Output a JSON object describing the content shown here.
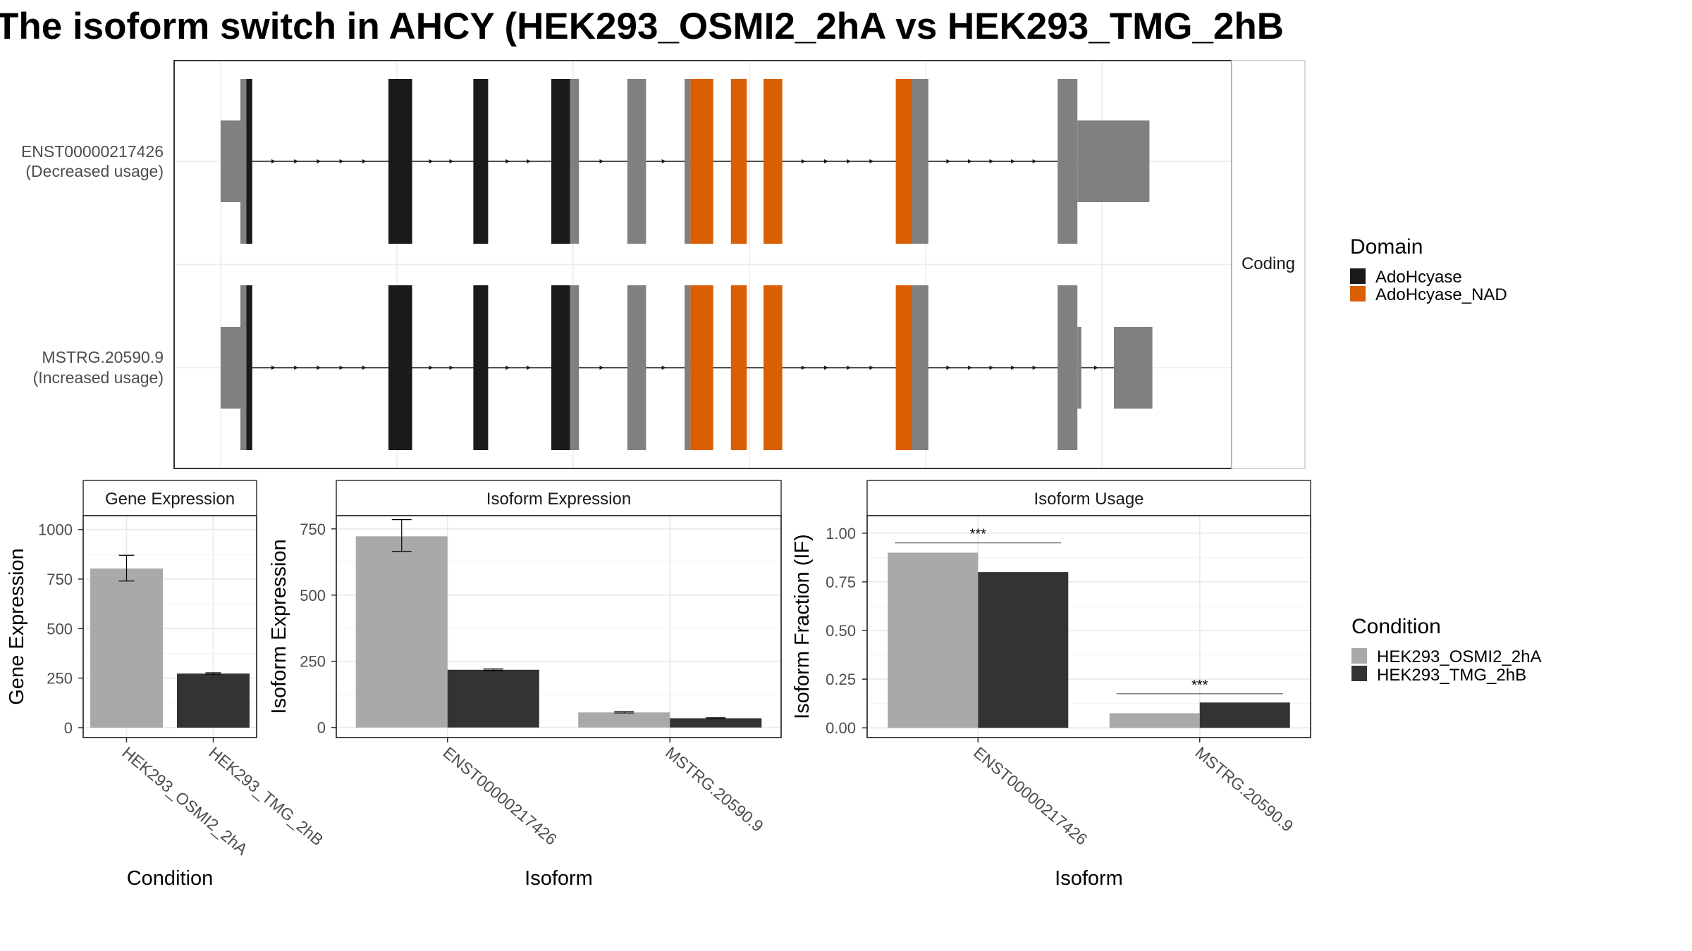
{
  "title": "The isoform switch in AHCY (HEK293_OSMI2_2hA vs HEK293_TMG_2hB",
  "colors": {
    "domain_AdoHcyase": "#1a1a1a",
    "domain_AdoHcyase_NAD": "#d95f02",
    "noncoding_exon": "#808080",
    "cond_A": "#a9a9a9",
    "cond_B": "#333333",
    "grid": "#ebebeb",
    "frame": "#333333"
  },
  "structure_panel": {
    "facet_label": "Coding",
    "isoforms": [
      {
        "id": "ENST00000217426",
        "label_line1": "ENST00000217426",
        "label_line2": "(Decreased usage)",
        "blocks": [
          {
            "start": 0.0,
            "end": 2.0,
            "h": "utr",
            "c": "gray"
          },
          {
            "start": 2.0,
            "end": 2.6,
            "h": "cds",
            "c": "gray"
          },
          {
            "start": 2.6,
            "end": 3.2,
            "h": "cds",
            "c": "black"
          },
          {
            "start": 17.0,
            "end": 19.4,
            "h": "cds",
            "c": "black"
          },
          {
            "start": 25.6,
            "end": 27.1,
            "h": "cds",
            "c": "black"
          },
          {
            "start": 33.5,
            "end": 35.4,
            "h": "cds",
            "c": "black"
          },
          {
            "start": 35.4,
            "end": 36.3,
            "h": "cds",
            "c": "gray"
          },
          {
            "start": 41.2,
            "end": 43.1,
            "h": "cds",
            "c": "gray"
          },
          {
            "start": 47.0,
            "end": 47.6,
            "h": "cds",
            "c": "gray"
          },
          {
            "start": 47.6,
            "end": 49.9,
            "h": "cds",
            "c": "orange"
          },
          {
            "start": 51.7,
            "end": 53.3,
            "h": "cds",
            "c": "orange"
          },
          {
            "start": 55.0,
            "end": 56.9,
            "h": "cds",
            "c": "orange"
          },
          {
            "start": 68.4,
            "end": 70.0,
            "h": "cds",
            "c": "orange"
          },
          {
            "start": 70.0,
            "end": 71.7,
            "h": "cds",
            "c": "gray"
          },
          {
            "start": 84.8,
            "end": 86.8,
            "h": "cds",
            "c": "gray"
          },
          {
            "start": 86.8,
            "end": 94.1,
            "h": "utr",
            "c": "gray"
          }
        ],
        "intron_start": 3.2,
        "intron_end": 84.8
      },
      {
        "id": "MSTRG.20590.9",
        "label_line1": "MSTRG.20590.9",
        "label_line2": "(Increased usage)",
        "blocks": [
          {
            "start": 0.0,
            "end": 2.0,
            "h": "utr",
            "c": "gray"
          },
          {
            "start": 2.0,
            "end": 2.6,
            "h": "cds",
            "c": "gray"
          },
          {
            "start": 2.6,
            "end": 3.2,
            "h": "cds",
            "c": "black"
          },
          {
            "start": 17.0,
            "end": 19.4,
            "h": "cds",
            "c": "black"
          },
          {
            "start": 25.6,
            "end": 27.1,
            "h": "cds",
            "c": "black"
          },
          {
            "start": 33.5,
            "end": 35.4,
            "h": "cds",
            "c": "black"
          },
          {
            "start": 35.4,
            "end": 36.3,
            "h": "cds",
            "c": "gray"
          },
          {
            "start": 41.2,
            "end": 43.1,
            "h": "cds",
            "c": "gray"
          },
          {
            "start": 47.0,
            "end": 47.6,
            "h": "cds",
            "c": "gray"
          },
          {
            "start": 47.6,
            "end": 49.9,
            "h": "cds",
            "c": "orange"
          },
          {
            "start": 51.7,
            "end": 53.3,
            "h": "cds",
            "c": "orange"
          },
          {
            "start": 55.0,
            "end": 56.9,
            "h": "cds",
            "c": "orange"
          },
          {
            "start": 68.4,
            "end": 70.0,
            "h": "cds",
            "c": "orange"
          },
          {
            "start": 70.0,
            "end": 71.7,
            "h": "cds",
            "c": "gray"
          },
          {
            "start": 84.8,
            "end": 86.8,
            "h": "cds",
            "c": "gray"
          },
          {
            "start": 86.8,
            "end": 87.2,
            "h": "utr",
            "c": "gray"
          },
          {
            "start": 90.5,
            "end": 94.4,
            "h": "utr",
            "c": "gray"
          }
        ],
        "intron_start": 3.2,
        "intron_end": 90.5
      }
    ]
  },
  "legend_domain": {
    "title": "Domain",
    "items": [
      {
        "label": "AdoHcyase",
        "color": "#1a1a1a"
      },
      {
        "label": "AdoHcyase_NAD",
        "color": "#d95f02"
      }
    ]
  },
  "legend_condition": {
    "title": "Condition",
    "items": [
      {
        "label": "HEK293_OSMI2_2hA",
        "color": "#a9a9a9"
      },
      {
        "label": "HEK293_TMG_2hB",
        "color": "#333333"
      }
    ]
  },
  "chart_data": [
    {
      "type": "bar",
      "facet": "Gene Expression",
      "xlabel": "Condition",
      "ylabel": "Gene Expression",
      "categories": [
        "HEK293_OSMI2_2hA",
        "HEK293_TMG_2hB"
      ],
      "values": [
        803,
        273
      ],
      "errors": [
        [
          740,
          870
        ],
        [
          270,
          277
        ]
      ],
      "ylim": [
        -50,
        1070
      ],
      "yticks": [
        0,
        250,
        500,
        750,
        1000
      ],
      "ytick_labels": [
        "0",
        "250",
        "500",
        "750",
        "1000"
      ]
    },
    {
      "type": "bar",
      "facet": "Isoform Expression",
      "xlabel": "Isoform",
      "ylabel": "Isoform Expression",
      "categories": [
        "ENST00000217426",
        "MSTRG.20590.9"
      ],
      "series": [
        {
          "name": "HEK293_OSMI2_2hA",
          "values": [
            722,
            57
          ],
          "errors": [
            [
              665,
              785
            ],
            [
              55,
              60
            ]
          ]
        },
        {
          "name": "HEK293_TMG_2hB",
          "values": [
            218,
            35
          ],
          "errors": [
            [
              215,
              221
            ],
            [
              33,
              37
            ]
          ]
        }
      ],
      "ylim": [
        -38,
        800
      ],
      "yticks": [
        0,
        250,
        500,
        750
      ],
      "ytick_labels": [
        "0",
        "250",
        "500",
        "750"
      ]
    },
    {
      "type": "bar",
      "facet": "Isoform Usage",
      "xlabel": "Isoform",
      "ylabel": "Isoform Fraction (IF)",
      "categories": [
        "ENST00000217426",
        "MSTRG.20590.9"
      ],
      "series": [
        {
          "name": "HEK293_OSMI2_2hA",
          "values": [
            0.9,
            0.075
          ]
        },
        {
          "name": "HEK293_TMG_2hB",
          "values": [
            0.8,
            0.13
          ]
        }
      ],
      "significance": [
        {
          "category": "ENST00000217426",
          "label": "***",
          "y": 0.95
        },
        {
          "category": "MSTRG.20590.9",
          "label": "***",
          "y": 0.175
        }
      ],
      "ylim": [
        -0.05,
        1.09
      ],
      "yticks": [
        0.0,
        0.25,
        0.5,
        0.75,
        1.0
      ],
      "ytick_labels": [
        "0.00",
        "0.25",
        "0.50",
        "0.75",
        "1.00"
      ]
    }
  ]
}
